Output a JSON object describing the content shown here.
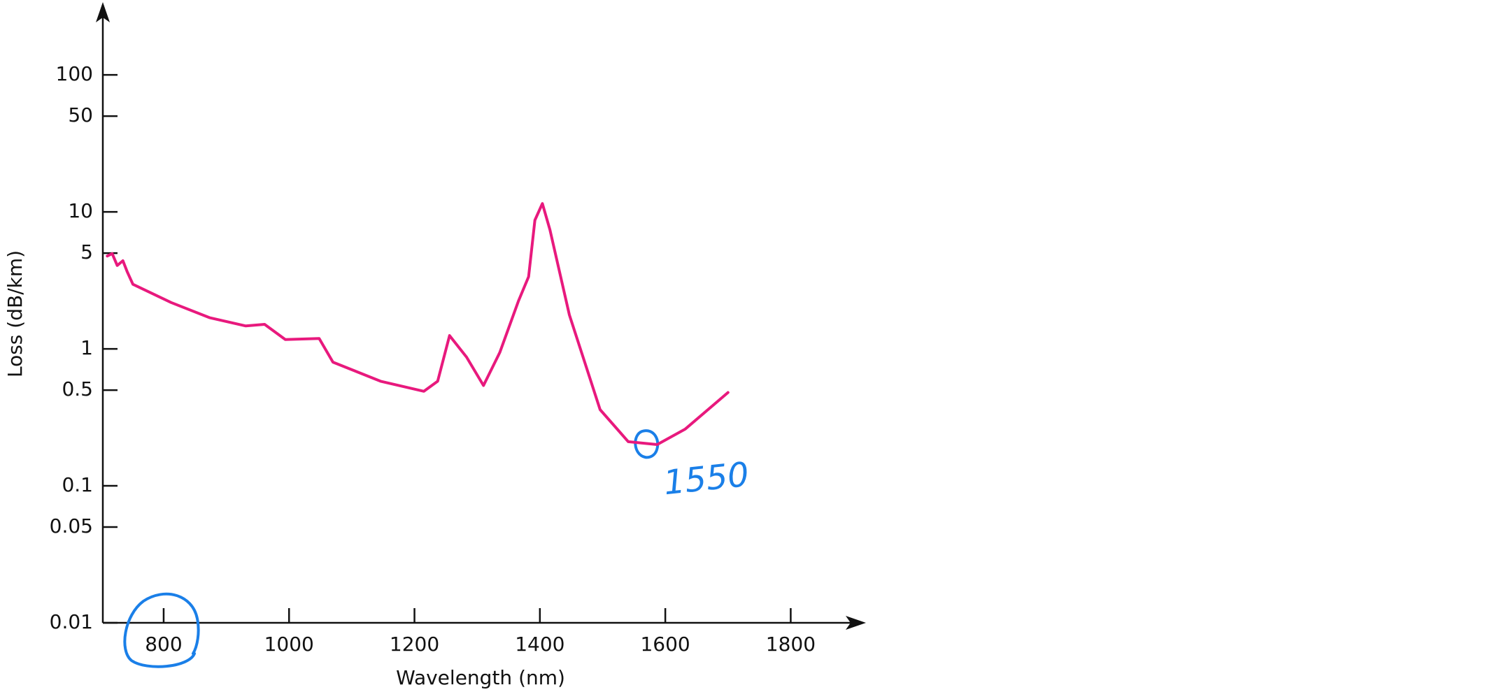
{
  "chart_data": {
    "type": "line",
    "x_label": "Wavelength (nm)",
    "y_label": "Loss (dB/km)",
    "x": [
      710,
      718,
      726,
      735,
      742,
      751,
      812,
      873,
      931,
      961,
      994,
      1048,
      1070,
      1146,
      1215,
      1237,
      1256,
      1283,
      1310,
      1336,
      1366,
      1382,
      1392,
      1404,
      1416,
      1447,
      1496,
      1541,
      1587,
      1632,
      1700
    ],
    "values": [
      4.76,
      4.96,
      4.06,
      4.4,
      3.64,
      2.96,
      2.18,
      1.69,
      1.47,
      1.51,
      1.17,
      1.19,
      0.8,
      0.58,
      0.49,
      0.58,
      1.25,
      0.87,
      0.54,
      0.94,
      2.25,
      3.36,
      8.7,
      11.5,
      7.4,
      1.77,
      0.36,
      0.21,
      0.2,
      0.26,
      0.48
    ],
    "color": "#e8197d",
    "xlim": [
      703,
      1920
    ],
    "xticks": [
      800,
      1000,
      1200,
      1400,
      1600,
      1800
    ],
    "ylim": [
      0.01,
      340
    ],
    "yticks": [
      0.01,
      0.05,
      0.1,
      0.5,
      1,
      5,
      10,
      50,
      100
    ],
    "log_y": true,
    "annotations": [
      "1550"
    ]
  }
}
